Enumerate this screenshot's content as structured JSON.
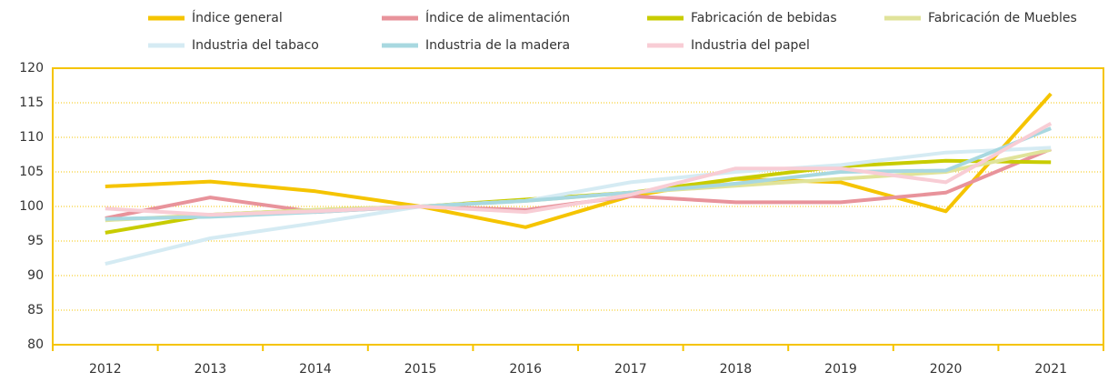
{
  "chart_data": {
    "type": "line",
    "categories": [
      "2012",
      "2013",
      "2014",
      "2015",
      "2016",
      "2017",
      "2018",
      "2019",
      "2020",
      "2021"
    ],
    "series": [
      {
        "name": "Índice general",
        "color": "#f5c400",
        "values": [
          102.9,
          103.6,
          102.2,
          100,
          97,
          101.5,
          104,
          103.5,
          99.3,
          116.3
        ]
      },
      {
        "name": "Índice de alimentación",
        "color": "#e8939b",
        "values": [
          98.3,
          101.3,
          99.2,
          100,
          99.5,
          101.5,
          100.6,
          100.6,
          102,
          108.3
        ]
      },
      {
        "name": "Fabricación de bebidas",
        "color": "#c8cc00",
        "values": [
          96.2,
          98.8,
          99.5,
          100,
          101,
          102,
          104,
          105.8,
          106.6,
          106.4
        ]
      },
      {
        "name": "Fabricación de Muebles",
        "color": "#e0e39a",
        "values": [
          98,
          98.8,
          99.5,
          100,
          100.8,
          102,
          103,
          104,
          105,
          108.2
        ]
      },
      {
        "name": "Industria del tabaco",
        "color": "#d5ebf3",
        "values": [
          91.7,
          95.4,
          97.6,
          100,
          100.8,
          103.5,
          105,
          106,
          107.8,
          108.5
        ]
      },
      {
        "name": "Industria de la madera",
        "color": "#a8d8e0",
        "values": [
          98.2,
          98.5,
          99.2,
          100,
          100.8,
          102,
          103.3,
          105,
          105.2,
          111.3
        ]
      },
      {
        "name": "Industria del papel",
        "color": "#f8cdd5",
        "values": [
          99.7,
          98.8,
          99.3,
          100,
          99.2,
          101.7,
          105.5,
          105.5,
          103.5,
          112
        ]
      }
    ],
    "ylim": [
      80,
      120
    ],
    "yticks": [
      80,
      85,
      90,
      95,
      100,
      105,
      110,
      115,
      120
    ],
    "grid": true
  }
}
